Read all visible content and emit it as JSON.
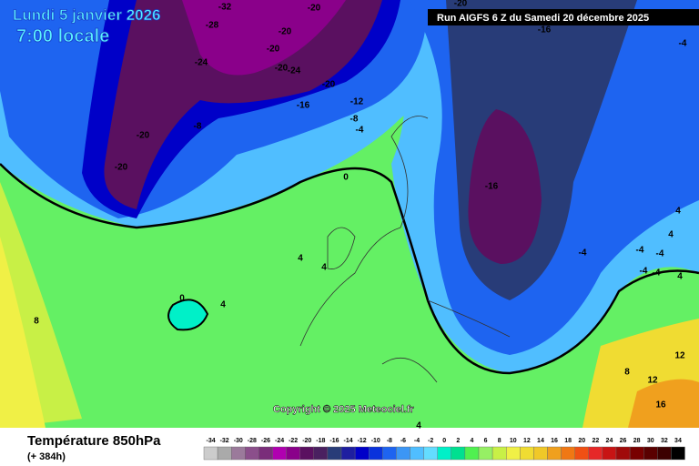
{
  "header": {
    "date": "Lundi 5 janvier 2026",
    "time": "7:00 locale",
    "run": "Run AIGFS 6 Z du Samedi 20 décembre 2025"
  },
  "copyright": "Copyright © 2025 Meteociel.fr",
  "footer": {
    "title": "Température 850hPa",
    "lead": "(+ 384h)"
  },
  "contour_labels": [
    -32,
    -28,
    -20,
    -20,
    -20,
    -24,
    -20,
    -24,
    -20,
    -16,
    -12,
    -8,
    -4,
    -8,
    -20,
    -20,
    -20,
    -16,
    -4,
    0,
    -16,
    4,
    4,
    0,
    4,
    8,
    -4,
    -4,
    -4,
    -4,
    -4,
    4,
    4,
    4,
    12,
    8,
    12,
    16,
    4
  ],
  "legend": {
    "ticks": [
      -34,
      -32,
      -30,
      -28,
      -26,
      -24,
      -22,
      -20,
      -18,
      -16,
      -14,
      -12,
      -10,
      -8,
      -6,
      -4,
      -2,
      0,
      2,
      4,
      6,
      8,
      10,
      12,
      14,
      16,
      18,
      20,
      22,
      24,
      26,
      28,
      30,
      32,
      34
    ],
    "colors": [
      "#cccccc",
      "#aaaaaa",
      "#9b7a9b",
      "#8b4f8b",
      "#7a2d7a",
      "#b000b0",
      "#8a008a",
      "#5a1060",
      "#4a2060",
      "#283c78",
      "#1e1ea0",
      "#0000c8",
      "#0a32dc",
      "#1e64f0",
      "#3c96f5",
      "#50beff",
      "#64dcff",
      "#00f0c8",
      "#00e090",
      "#50f050",
      "#96f064",
      "#c8f046",
      "#f0f046",
      "#f0dc32",
      "#f0c828",
      "#f0a01e",
      "#f07814",
      "#f05014",
      "#e62828",
      "#c81414",
      "#a00a0a",
      "#780000",
      "#5a0000",
      "#3c0000",
      "#000000"
    ]
  }
}
